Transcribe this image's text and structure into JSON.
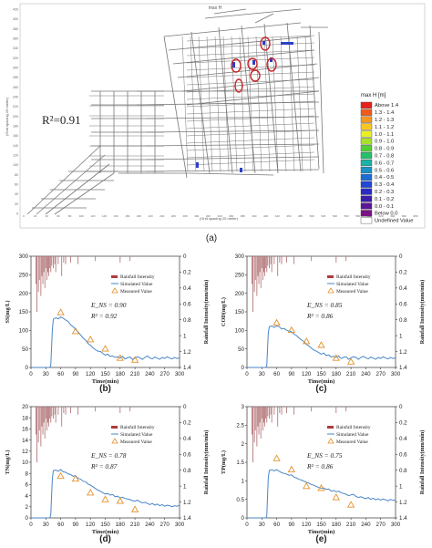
{
  "map": {
    "title": "max H",
    "r2": "R²=0.91",
    "label": "(a)",
    "xlabel": "(Grid spacing 20 meter)",
    "ylabel": "(Grid spacing 20 meter)",
    "x_ticks": [
      "0",
      "20",
      "40",
      "60",
      "80",
      "100",
      "120",
      "140",
      "160",
      "180",
      "200",
      "220",
      "240",
      "260",
      "280",
      "300",
      "320",
      "340",
      "360",
      "380",
      "400",
      "420",
      "440",
      "460",
      "480",
      "500",
      "520",
      "540",
      "560",
      "580",
      "600",
      "620",
      "640",
      "660",
      "680"
    ],
    "y_ticks": [
      "420",
      "400",
      "380",
      "360",
      "340",
      "320",
      "300",
      "280",
      "260",
      "240",
      "220",
      "200",
      "180",
      "160",
      "140",
      "120",
      "100",
      "80",
      "60",
      "40",
      "20",
      "0"
    ],
    "legend": {
      "title": "max H [m]",
      "items": [
        {
          "label": "Above 1.4",
          "color": "#e8201a"
        },
        {
          "label": "1.3 - 1.4",
          "color": "#f05a1c"
        },
        {
          "label": "1.2 - 1.3",
          "color": "#f5961d"
        },
        {
          "label": "1.1 - 1.2",
          "color": "#f9c81f"
        },
        {
          "label": "1.0 - 1.1",
          "color": "#e8ef25"
        },
        {
          "label": "0.9 - 1.0",
          "color": "#a8e02b"
        },
        {
          "label": "0.8 - 0.9",
          "color": "#52cf36"
        },
        {
          "label": "0.7 - 0.8",
          "color": "#22c26a"
        },
        {
          "label": "0.6 - 0.7",
          "color": "#1bb3a5"
        },
        {
          "label": "0.5 - 0.6",
          "color": "#1a92c8"
        },
        {
          "label": "0.4 - 0.5",
          "color": "#1d6bd8"
        },
        {
          "label": "0.3 - 0.4",
          "color": "#2147d6"
        },
        {
          "label": "0.2 - 0.3",
          "color": "#2a2bc4"
        },
        {
          "label": "0.1 - 0.2",
          "color": "#3a1daa"
        },
        {
          "label": "0.0 - 0.1",
          "color": "#5a1696"
        },
        {
          "label": "Below 0.0",
          "color": "#7a1284"
        },
        {
          "label": "Undefined Value",
          "color": "#ffffff"
        }
      ]
    }
  },
  "chart_data": [
    {
      "type": "line",
      "panel": "(b)",
      "xlabel": "Time(min)",
      "ylabel": "SS(mg/L)",
      "y2label": "Rainfall Intensity(mm/min)",
      "xlim": [
        0,
        300
      ],
      "ylim": [
        0,
        300
      ],
      "y2lim": [
        0,
        1.4
      ],
      "xticks": [
        0,
        30,
        60,
        90,
        120,
        150,
        180,
        210,
        240,
        270,
        300
      ],
      "yticks": [
        0,
        50,
        100,
        150,
        200,
        250,
        300
      ],
      "y2ticks": [
        0,
        0.2,
        0.4,
        0.6,
        0.8,
        1.0,
        1.2,
        1.4
      ],
      "stats": [
        "E_NS = 0.90",
        "R² = 0.92"
      ],
      "legend": [
        "Rainfall Intensity",
        "Simulated Value",
        "Measured Value"
      ],
      "simulated": {
        "x": [
          0,
          38,
          40,
          43,
          45,
          50,
          55,
          60,
          65,
          70,
          75,
          80,
          85,
          90,
          95,
          100,
          105,
          110,
          115,
          120,
          125,
          130,
          135,
          140,
          145,
          150,
          155,
          160,
          165,
          170,
          175,
          180,
          185,
          190,
          195,
          200,
          205,
          210,
          215,
          220,
          225,
          230,
          235,
          240,
          245,
          250,
          255,
          260,
          265,
          270,
          275,
          280,
          285,
          290,
          295,
          300
        ],
        "y": [
          0,
          0,
          5,
          100,
          130,
          134,
          131,
          136,
          133,
          128,
          124,
          115,
          110,
          103,
          96,
          88,
          80,
          74,
          65,
          60,
          53,
          48,
          44,
          43,
          38,
          33,
          36,
          30,
          31,
          27,
          29,
          25,
          30,
          23,
          26,
          28,
          22,
          25,
          29,
          26,
          22,
          27,
          31,
          26,
          23,
          28,
          25,
          22,
          27,
          24,
          29,
          25,
          23,
          27,
          24,
          26
        ]
      },
      "measured": {
        "x": [
          60,
          90,
          120,
          150,
          180,
          210
        ],
        "y": [
          148,
          97,
          75,
          50,
          25,
          20
        ]
      },
      "rain": {
        "x": [
          10,
          12,
          15,
          17,
          20,
          22,
          24,
          26,
          28,
          30,
          32,
          34,
          36,
          38,
          40,
          42,
          45,
          48,
          50,
          55,
          62,
          66,
          70,
          80,
          95,
          130,
          180,
          200
        ],
        "y": [
          0.35,
          0.7,
          0.45,
          0.3,
          0.5,
          0.25,
          0.35,
          0.2,
          0.4,
          0.15,
          0.3,
          0.2,
          0.25,
          0.15,
          0.2,
          0.12,
          0.15,
          0.1,
          0.2,
          0.1,
          0.25,
          0.08,
          0.1,
          0.08,
          0.1,
          0.06,
          0.08,
          0.06
        ]
      }
    },
    {
      "type": "line",
      "panel": "(c)",
      "xlabel": "Time(min)",
      "ylabel": "COD(mg/L)",
      "y2label": "Rainfall Intensity(mm/min)",
      "xlim": [
        0,
        300
      ],
      "ylim": [
        0,
        300
      ],
      "y2lim": [
        0,
        1.4
      ],
      "xticks": [
        0,
        30,
        60,
        90,
        120,
        150,
        180,
        210,
        240,
        270,
        300
      ],
      "yticks": [
        0,
        50,
        100,
        150,
        200,
        250,
        300
      ],
      "y2ticks": [
        0,
        0.2,
        0.4,
        0.6,
        0.8,
        1.0,
        1.2,
        1.4
      ],
      "stats": [
        "E_NS = 0.85",
        "R² = 0.86"
      ],
      "legend": [
        "Rainfall Intensity",
        "Simulated Value",
        "Measured Value"
      ],
      "simulated": {
        "x": [
          0,
          38,
          40,
          43,
          45,
          50,
          55,
          60,
          65,
          70,
          75,
          80,
          85,
          90,
          95,
          100,
          105,
          110,
          115,
          120,
          125,
          130,
          135,
          140,
          145,
          150,
          155,
          160,
          165,
          170,
          175,
          180,
          185,
          190,
          195,
          200,
          205,
          210,
          215,
          220,
          225,
          230,
          235,
          240,
          245,
          250,
          255,
          260,
          265,
          270,
          275,
          280,
          285,
          290,
          295,
          300
        ],
        "y": [
          0,
          0,
          5,
          95,
          110,
          112,
          108,
          112,
          110,
          104,
          105,
          100,
          98,
          96,
          90,
          86,
          80,
          74,
          70,
          62,
          58,
          52,
          47,
          44,
          40,
          36,
          39,
          32,
          34,
          28,
          30,
          27,
          31,
          24,
          27,
          29,
          22,
          26,
          29,
          27,
          22,
          27,
          30,
          26,
          23,
          28,
          25,
          22,
          27,
          24,
          29,
          25,
          23,
          27,
          24,
          26
        ]
      },
      "measured": {
        "x": [
          60,
          90,
          120,
          150,
          180,
          210
        ],
        "y": [
          120,
          100,
          70,
          60,
          25,
          15
        ]
      },
      "rain": {
        "x": [
          10,
          12,
          15,
          17,
          20,
          22,
          24,
          26,
          28,
          30,
          32,
          34,
          36,
          38,
          40,
          42,
          45,
          48,
          50,
          55,
          62,
          66,
          70,
          80,
          95,
          130,
          180,
          200
        ],
        "y": [
          0.35,
          0.7,
          0.45,
          0.3,
          0.5,
          0.25,
          0.35,
          0.2,
          0.4,
          0.15,
          0.3,
          0.2,
          0.25,
          0.15,
          0.2,
          0.12,
          0.15,
          0.1,
          0.2,
          0.1,
          0.25,
          0.08,
          0.1,
          0.08,
          0.1,
          0.06,
          0.08,
          0.06
        ]
      }
    },
    {
      "type": "line",
      "panel": "(d)",
      "xlabel": "Time(min)",
      "ylabel": "TN(mg/L)",
      "y2label": "Rainfall Intensity(mm/min)",
      "xlim": [
        0,
        300
      ],
      "ylim": [
        0,
        20
      ],
      "y2lim": [
        0,
        1.4
      ],
      "xticks": [
        0,
        30,
        60,
        90,
        120,
        150,
        180,
        210,
        240,
        270,
        300
      ],
      "yticks": [
        0,
        2,
        4,
        6,
        8,
        10,
        12,
        14,
        16,
        18,
        20
      ],
      "y2ticks": [
        0,
        0.2,
        0.4,
        0.6,
        0.8,
        1.0,
        1.2,
        1.4
      ],
      "stats": [
        "E_NS = 0.78",
        "R² = 0.87"
      ],
      "legend": [
        "Rainfall Intensity",
        "Simulated Value",
        "Measured Value"
      ],
      "simulated": {
        "x": [
          0,
          38,
          40,
          43,
          45,
          50,
          55,
          60,
          65,
          70,
          75,
          80,
          85,
          90,
          95,
          100,
          105,
          110,
          115,
          120,
          125,
          130,
          135,
          140,
          145,
          150,
          155,
          160,
          165,
          170,
          175,
          180,
          185,
          190,
          195,
          200,
          205,
          210,
          215,
          220,
          225,
          230,
          235,
          240,
          245,
          250,
          255,
          260,
          265,
          270,
          275,
          280,
          285,
          290,
          295,
          300
        ],
        "y": [
          0,
          0,
          0.5,
          7,
          8.5,
          8.6,
          8.4,
          8.7,
          8.3,
          8.2,
          7.9,
          7.8,
          7.5,
          7.6,
          7.1,
          7.0,
          6.6,
          6.5,
          6.1,
          5.9,
          5.6,
          5.3,
          5.0,
          4.8,
          4.5,
          4.3,
          4.4,
          4.1,
          4.2,
          3.8,
          3.9,
          3.6,
          3.7,
          3.5,
          3.4,
          3.3,
          3.1,
          3.0,
          3.2,
          2.9,
          2.7,
          2.8,
          2.6,
          2.4,
          2.6,
          2.3,
          2.5,
          2.2,
          2.4,
          2.1,
          2.3,
          2.2,
          2.0,
          2.2,
          2.1,
          2.3
        ]
      },
      "measured": {
        "x": [
          60,
          90,
          120,
          150,
          180,
          210
        ],
        "y": [
          7.5,
          7.0,
          4.5,
          3.3,
          3.0,
          1.5
        ]
      },
      "rain": {
        "x": [
          10,
          12,
          15,
          17,
          20,
          22,
          24,
          26,
          28,
          30,
          32,
          34,
          36,
          38,
          40,
          42,
          45,
          48,
          50,
          55,
          62,
          66,
          70,
          80,
          95,
          130,
          180,
          200
        ],
        "y": [
          0.35,
          0.7,
          0.45,
          0.3,
          0.5,
          0.25,
          0.35,
          0.2,
          0.4,
          0.15,
          0.3,
          0.2,
          0.25,
          0.15,
          0.2,
          0.12,
          0.15,
          0.1,
          0.2,
          0.1,
          0.25,
          0.08,
          0.1,
          0.08,
          0.1,
          0.06,
          0.08,
          0.06
        ]
      }
    },
    {
      "type": "line",
      "panel": "(e)",
      "xlabel": "Time(min)",
      "ylabel": "TP(mg/L)",
      "y2label": "Rainfall Intensity(mm/min)",
      "xlim": [
        0,
        300
      ],
      "ylim": [
        0,
        3
      ],
      "y2lim": [
        0,
        1.4
      ],
      "xticks": [
        0,
        30,
        60,
        90,
        120,
        150,
        180,
        210,
        240,
        270,
        300
      ],
      "yticks": [
        0,
        0.5,
        1,
        1.5,
        2,
        2.5,
        3
      ],
      "y2ticks": [
        0,
        0.2,
        0.4,
        0.6,
        0.8,
        1.0,
        1.2,
        1.4
      ],
      "stats": [
        "E_NS = 0.75",
        "R² = 0.86"
      ],
      "legend": [
        "Rainfall Intensity",
        "Simulated Value",
        "Measured Value"
      ],
      "simulated": {
        "x": [
          0,
          38,
          40,
          43,
          45,
          50,
          55,
          60,
          65,
          70,
          75,
          80,
          85,
          90,
          95,
          100,
          105,
          110,
          115,
          120,
          125,
          130,
          135,
          140,
          145,
          150,
          155,
          160,
          165,
          170,
          175,
          180,
          185,
          190,
          195,
          200,
          205,
          210,
          215,
          220,
          225,
          230,
          235,
          240,
          245,
          250,
          255,
          260,
          265,
          270,
          275,
          280,
          285,
          290,
          295,
          300
        ],
        "y": [
          0,
          0,
          0.05,
          1.1,
          1.28,
          1.3,
          1.27,
          1.3,
          1.26,
          1.22,
          1.2,
          1.18,
          1.15,
          1.16,
          1.1,
          1.08,
          1.04,
          1.02,
          0.99,
          0.96,
          0.94,
          0.9,
          0.88,
          0.85,
          0.82,
          0.8,
          0.81,
          0.77,
          0.78,
          0.72,
          0.74,
          0.7,
          0.72,
          0.68,
          0.66,
          0.64,
          0.6,
          0.62,
          0.64,
          0.58,
          0.55,
          0.57,
          0.54,
          0.52,
          0.55,
          0.5,
          0.53,
          0.49,
          0.52,
          0.48,
          0.51,
          0.49,
          0.46,
          0.5,
          0.47,
          0.49
        ]
      },
      "measured": {
        "x": [
          60,
          90,
          120,
          150,
          180,
          210
        ],
        "y": [
          1.6,
          1.3,
          0.85,
          0.8,
          0.55,
          0.35
        ]
      },
      "rain": {
        "x": [
          10,
          12,
          15,
          17,
          20,
          22,
          24,
          26,
          28,
          30,
          32,
          34,
          36,
          38,
          40,
          42,
          45,
          48,
          50,
          55,
          62,
          66,
          70,
          80,
          95,
          130,
          180,
          200
        ],
        "y": [
          0.35,
          0.7,
          0.45,
          0.3,
          0.5,
          0.25,
          0.35,
          0.2,
          0.4,
          0.15,
          0.3,
          0.2,
          0.25,
          0.15,
          0.2,
          0.12,
          0.15,
          0.1,
          0.2,
          0.1,
          0.25,
          0.08,
          0.1,
          0.08,
          0.1,
          0.06,
          0.08,
          0.06
        ]
      }
    }
  ]
}
